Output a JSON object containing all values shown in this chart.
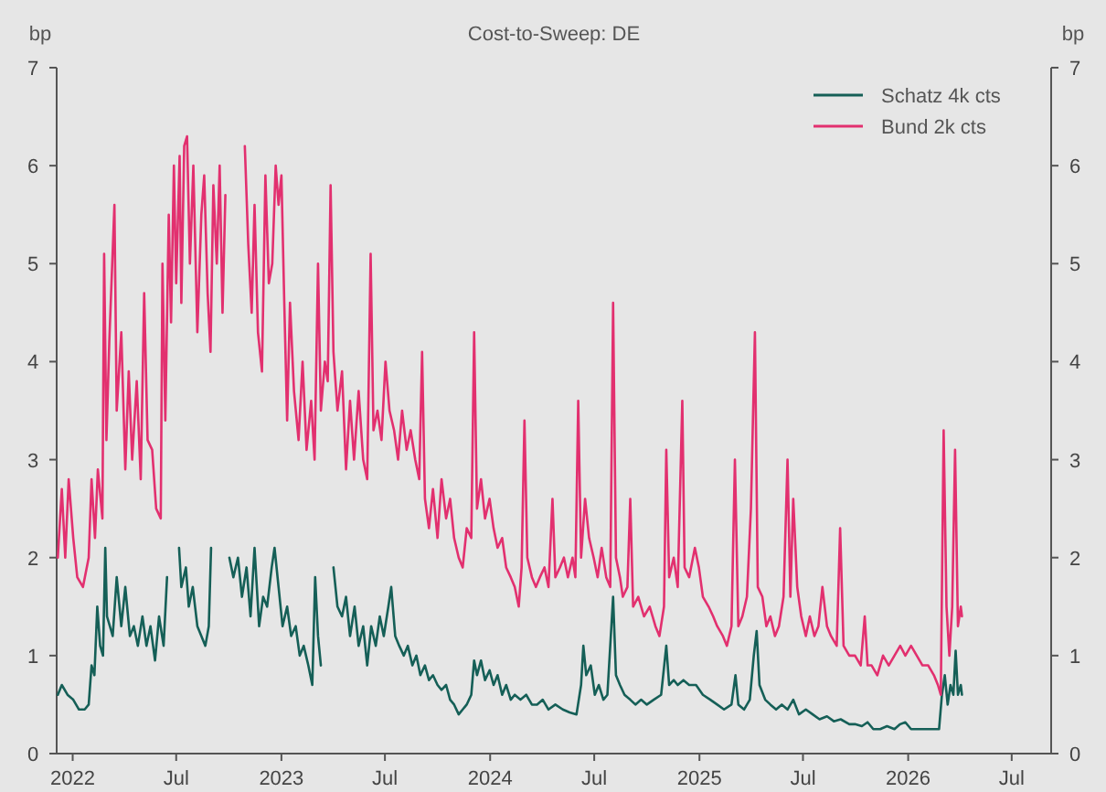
{
  "chart_data": {
    "type": "line",
    "title": "Cost-to-Sweep: DE",
    "ylabel": "bp",
    "y2label": "bp",
    "xlim": [
      "2021-12-04",
      "2026-09-08"
    ],
    "xticks": [
      {
        "value": "2022-01-01",
        "label": "2022"
      },
      {
        "value": "2022-07-01",
        "label": "Jul"
      },
      {
        "value": "2023-01-01",
        "label": "2023"
      },
      {
        "value": "2023-07-01",
        "label": "Jul"
      },
      {
        "value": "2024-01-01",
        "label": "2024"
      },
      {
        "value": "2024-07-01",
        "label": "Jul"
      },
      {
        "value": "2025-01-01",
        "label": "2025"
      },
      {
        "value": "2025-07-01",
        "label": "Jul"
      },
      {
        "value": "2026-01-01",
        "label": "2026"
      },
      {
        "value": "2026-07-01",
        "label": "Jul"
      }
    ],
    "ylim": [
      0,
      7
    ],
    "yticks": [
      0,
      1,
      2,
      3,
      4,
      5,
      6,
      7
    ],
    "y2lim": [
      0,
      7
    ],
    "y2ticks": [
      0,
      1,
      2,
      3,
      4,
      5,
      6,
      7
    ],
    "grid": false,
    "legend": "top right",
    "line_style": "solid",
    "marker": "none",
    "series": [
      {
        "name": "Schatz 4k cts",
        "color": "#155f57",
        "x": [
          "2021-12-06",
          "2021-12-13",
          "2021-12-23",
          "2022-01-02",
          "2022-01-12",
          "2022-01-22",
          "2022-01-29",
          "2022-02-03",
          "2022-02-08",
          "2022-02-13",
          "2022-02-18",
          "2022-02-23",
          "2022-02-27",
          "2022-03-02",
          "2022-03-12",
          "2022-03-19",
          "2022-03-27",
          "2022-04-03",
          "2022-04-11",
          "2022-04-18",
          "2022-04-25",
          "2022-05-03",
          "2022-05-10",
          "2022-05-17",
          "2022-05-25",
          "2022-06-01",
          "2022-06-09",
          "2022-06-15",
          "2022-06-25",
          "2022-07-06",
          "2022-07-10",
          "2022-07-18",
          "2022-07-23",
          "2022-07-30",
          "2022-08-07",
          "2022-08-14",
          "2022-08-21",
          "2022-08-27",
          "2022-08-31",
          "2022-09-15",
          "2022-10-02",
          "2022-10-09",
          "2022-10-17",
          "2022-10-24",
          "2022-11-01",
          "2022-11-08",
          "2022-11-15",
          "2022-11-23",
          "2022-11-30",
          "2022-12-07",
          "2022-12-15",
          "2022-12-20",
          "2022-12-27",
          "2023-01-03",
          "2023-01-11",
          "2023-01-18",
          "2023-01-26",
          "2023-02-02",
          "2023-02-09",
          "2023-02-17",
          "2023-02-24",
          "2023-03-01",
          "2023-03-06",
          "2023-03-11",
          "2023-03-20",
          "2023-04-02",
          "2023-04-09",
          "2023-04-17",
          "2023-04-24",
          "2023-05-01",
          "2023-05-09",
          "2023-05-16",
          "2023-05-24",
          "2023-05-31",
          "2023-06-07",
          "2023-06-15",
          "2023-06-22",
          "2023-06-29",
          "2023-07-07",
          "2023-07-12",
          "2023-07-19",
          "2023-07-26",
          "2023-08-03",
          "2023-08-10",
          "2023-08-18",
          "2023-08-25",
          "2023-09-01",
          "2023-09-09",
          "2023-09-16",
          "2023-09-23",
          "2023-10-01",
          "2023-10-08",
          "2023-10-16",
          "2023-10-23",
          "2023-10-30",
          "2023-11-07",
          "2023-11-14",
          "2023-11-21",
          "2023-11-29",
          "2023-12-04",
          "2023-12-09",
          "2023-12-16",
          "2023-12-23",
          "2023-12-31",
          "2024-01-07",
          "2024-01-14",
          "2024-01-22",
          "2024-01-29",
          "2024-02-06",
          "2024-02-13",
          "2024-02-23",
          "2024-03-04",
          "2024-03-14",
          "2024-03-23",
          "2024-04-02",
          "2024-04-12",
          "2024-04-24",
          "2024-05-07",
          "2024-05-19",
          "2024-05-31",
          "2024-06-08",
          "2024-06-12",
          "2024-06-17",
          "2024-06-25",
          "2024-07-02",
          "2024-07-09",
          "2024-07-17",
          "2024-07-24",
          "2024-08-03",
          "2024-08-08",
          "2024-08-15",
          "2024-08-23",
          "2024-09-02",
          "2024-09-11",
          "2024-09-21",
          "2024-10-01",
          "2024-10-13",
          "2024-10-26",
          "2024-11-04",
          "2024-11-09",
          "2024-11-17",
          "2024-11-24",
          "2024-12-04",
          "2024-12-14",
          "2024-12-26",
          "2025-01-07",
          "2025-01-20",
          "2025-02-01",
          "2025-02-13",
          "2025-02-26",
          "2025-03-05",
          "2025-03-10",
          "2025-03-20",
          "2025-03-30",
          "2025-04-06",
          "2025-04-11",
          "2025-04-16",
          "2025-04-26",
          "2025-05-05",
          "2025-05-15",
          "2025-05-25",
          "2025-06-04",
          "2025-06-14",
          "2025-06-24",
          "2025-07-06",
          "2025-07-18",
          "2025-07-30",
          "2025-08-12",
          "2025-08-24",
          "2025-09-05",
          "2025-09-20",
          "2025-09-30",
          "2025-10-12",
          "2025-10-22",
          "2025-11-01",
          "2025-11-13",
          "2025-11-25",
          "2025-12-08",
          "2025-12-18",
          "2025-12-27",
          "2026-01-06",
          "2026-01-18",
          "2026-01-31",
          "2026-02-12",
          "2026-02-24",
          "2026-03-01",
          "2026-03-06",
          "2026-03-11",
          "2026-03-16",
          "2026-03-21",
          "2026-03-25",
          "2026-03-29",
          "2026-04-03",
          "2026-04-05"
        ],
        "values": [
          0.6,
          0.7,
          0.6,
          0.55,
          0.45,
          0.45,
          0.5,
          0.9,
          0.8,
          1.5,
          1.1,
          1.0,
          2.1,
          1.4,
          1.2,
          1.8,
          1.3,
          1.7,
          1.2,
          1.3,
          1.1,
          1.4,
          1.1,
          1.3,
          0.95,
          1.4,
          1.1,
          1.8,
          null,
          2.1,
          1.7,
          1.9,
          1.5,
          1.7,
          1.3,
          1.2,
          1.1,
          1.3,
          2.1,
          null,
          2.0,
          1.8,
          2.0,
          1.6,
          1.9,
          1.4,
          2.1,
          1.3,
          1.6,
          1.5,
          1.9,
          2.1,
          1.7,
          1.3,
          1.5,
          1.2,
          1.3,
          1.0,
          1.1,
          0.9,
          0.7,
          1.8,
          1.2,
          0.9,
          null,
          1.9,
          1.5,
          1.4,
          1.6,
          1.2,
          1.5,
          1.1,
          1.3,
          0.9,
          1.3,
          1.1,
          1.4,
          1.2,
          1.5,
          1.7,
          1.2,
          1.1,
          1.0,
          1.1,
          0.9,
          1.0,
          0.8,
          0.9,
          0.75,
          0.8,
          0.7,
          0.65,
          0.7,
          0.55,
          0.5,
          0.4,
          0.45,
          0.5,
          0.6,
          0.95,
          0.8,
          0.95,
          0.75,
          0.85,
          0.7,
          0.8,
          0.6,
          0.7,
          0.55,
          0.6,
          0.55,
          0.6,
          0.5,
          0.5,
          0.55,
          0.45,
          0.5,
          0.45,
          0.42,
          0.4,
          0.7,
          1.1,
          0.8,
          0.9,
          0.6,
          0.7,
          0.55,
          0.6,
          1.6,
          0.8,
          0.7,
          0.6,
          0.55,
          0.5,
          0.55,
          0.5,
          0.55,
          0.6,
          1.1,
          0.7,
          0.75,
          0.7,
          0.75,
          0.7,
          0.7,
          0.6,
          0.55,
          0.5,
          0.45,
          0.5,
          0.8,
          0.5,
          0.45,
          0.55,
          1.0,
          1.25,
          0.7,
          0.55,
          0.5,
          0.45,
          0.5,
          0.45,
          0.55,
          0.4,
          0.45,
          0.4,
          0.35,
          0.38,
          0.33,
          0.35,
          0.3,
          0.3,
          0.28,
          0.32,
          0.25,
          0.25,
          0.28,
          0.25,
          0.3,
          0.32,
          0.25,
          0.25,
          0.25,
          0.25,
          0.25,
          0.6,
          0.8,
          0.5,
          0.7,
          0.6,
          1.05,
          0.6,
          0.7,
          0.6
        ]
      },
      {
        "name": "Bund 2k cts",
        "color": "#e2306f",
        "x": [
          "2021-12-06",
          "2021-12-13",
          "2021-12-19",
          "2021-12-25",
          "2022-01-02",
          "2022-01-09",
          "2022-01-19",
          "2022-01-29",
          "2022-02-03",
          "2022-02-09",
          "2022-02-14",
          "2022-02-22",
          "2022-02-25",
          "2022-03-01",
          "2022-03-06",
          "2022-03-15",
          "2022-03-19",
          "2022-03-27",
          "2022-04-03",
          "2022-04-09",
          "2022-04-15",
          "2022-04-23",
          "2022-04-30",
          "2022-05-06",
          "2022-05-12",
          "2022-05-20",
          "2022-05-27",
          "2022-06-04",
          "2022-06-07",
          "2022-06-12",
          "2022-06-18",
          "2022-06-22",
          "2022-06-27",
          "2022-07-01",
          "2022-07-07",
          "2022-07-10",
          "2022-07-15",
          "2022-07-20",
          "2022-07-25",
          "2022-07-31",
          "2022-08-07",
          "2022-08-14",
          "2022-08-19",
          "2022-08-25",
          "2022-08-30",
          "2022-09-04",
          "2022-09-10",
          "2022-09-15",
          "2022-09-20",
          "2022-09-25",
          "2022-10-12",
          "2022-10-29",
          "2022-11-04",
          "2022-11-10",
          "2022-11-15",
          "2022-11-21",
          "2022-11-28",
          "2022-12-04",
          "2022-12-10",
          "2022-12-16",
          "2022-12-22",
          "2022-12-27",
          "2023-01-01",
          "2023-01-06",
          "2023-01-11",
          "2023-01-16",
          "2023-01-23",
          "2023-01-31",
          "2023-02-07",
          "2023-02-14",
          "2023-02-22",
          "2023-02-28",
          "2023-03-06",
          "2023-03-11",
          "2023-03-18",
          "2023-03-23",
          "2023-03-28",
          "2023-04-02",
          "2023-04-09",
          "2023-04-17",
          "2023-04-24",
          "2023-05-01",
          "2023-05-08",
          "2023-05-16",
          "2023-05-24",
          "2023-05-31",
          "2023-06-06",
          "2023-06-11",
          "2023-06-18",
          "2023-06-25",
          "2023-07-02",
          "2023-07-09",
          "2023-07-17",
          "2023-07-24",
          "2023-07-31",
          "2023-08-08",
          "2023-08-15",
          "2023-08-23",
          "2023-08-30",
          "2023-09-04",
          "2023-09-09",
          "2023-09-16",
          "2023-09-23",
          "2023-10-01",
          "2023-10-08",
          "2023-10-16",
          "2023-10-23",
          "2023-10-30",
          "2023-11-07",
          "2023-11-14",
          "2023-11-21",
          "2023-11-29",
          "2023-12-04",
          "2023-12-09",
          "2023-12-16",
          "2023-12-23",
          "2023-12-31",
          "2024-01-07",
          "2024-01-14",
          "2024-01-22",
          "2024-01-29",
          "2024-02-06",
          "2024-02-13",
          "2024-02-20",
          "2024-02-25",
          "2024-03-01",
          "2024-03-06",
          "2024-03-14",
          "2024-03-21",
          "2024-03-28",
          "2024-04-05",
          "2024-04-12",
          "2024-04-19",
          "2024-04-24",
          "2024-05-02",
          "2024-05-09",
          "2024-05-16",
          "2024-05-24",
          "2024-05-29",
          "2024-06-03",
          "2024-06-08",
          "2024-06-15",
          "2024-06-22",
          "2024-06-30",
          "2024-07-07",
          "2024-07-14",
          "2024-07-22",
          "2024-07-29",
          "2024-08-03",
          "2024-08-08",
          "2024-08-15",
          "2024-08-20",
          "2024-08-28",
          "2024-09-02",
          "2024-09-07",
          "2024-09-16",
          "2024-09-26",
          "2024-10-06",
          "2024-10-16",
          "2024-10-23",
          "2024-10-31",
          "2024-11-04",
          "2024-11-09",
          "2024-11-17",
          "2024-11-24",
          "2024-12-02",
          "2024-12-06",
          "2024-12-14",
          "2024-12-24",
          "2024-12-31",
          "2025-01-07",
          "2025-01-17",
          "2025-01-25",
          "2025-02-01",
          "2025-02-11",
          "2025-02-18",
          "2025-02-26",
          "2025-03-04",
          "2025-03-10",
          "2025-03-17",
          "2025-03-25",
          "2025-04-01",
          "2025-04-08",
          "2025-04-13",
          "2025-04-21",
          "2025-04-28",
          "2025-05-05",
          "2025-05-13",
          "2025-05-20",
          "2025-05-28",
          "2025-06-04",
          "2025-06-09",
          "2025-06-14",
          "2025-06-21",
          "2025-06-28",
          "2025-07-06",
          "2025-07-13",
          "2025-07-21",
          "2025-07-28",
          "2025-08-04",
          "2025-08-12",
          "2025-08-19",
          "2025-08-29",
          "2025-09-04",
          "2025-09-10",
          "2025-09-20",
          "2025-09-30",
          "2025-10-10",
          "2025-10-17",
          "2025-10-22",
          "2025-10-29",
          "2025-11-08",
          "2025-11-18",
          "2025-11-28",
          "2025-12-08",
          "2025-12-18",
          "2025-12-27",
          "2026-01-06",
          "2026-01-16",
          "2026-01-26",
          "2026-02-05",
          "2026-02-15",
          "2026-02-22",
          "2026-02-27",
          "2026-03-04",
          "2026-03-09",
          "2026-03-14",
          "2026-03-19",
          "2026-03-24",
          "2026-03-29",
          "2026-04-03",
          "2026-04-05"
        ],
        "values": [
          2.0,
          2.7,
          2.0,
          2.8,
          2.2,
          1.8,
          1.7,
          2.0,
          2.8,
          2.2,
          2.9,
          2.4,
          5.1,
          3.2,
          4.2,
          5.6,
          3.5,
          4.3,
          2.9,
          3.9,
          3.0,
          3.8,
          2.8,
          4.7,
          3.2,
          3.1,
          2.5,
          2.4,
          5.0,
          3.4,
          5.5,
          4.4,
          6.0,
          4.8,
          6.1,
          4.6,
          6.2,
          6.3,
          5.0,
          6.0,
          4.3,
          5.5,
          5.9,
          4.7,
          4.1,
          5.8,
          5.0,
          6.0,
          4.5,
          5.7,
          null,
          6.2,
          5.2,
          4.5,
          5.6,
          4.3,
          3.9,
          5.9,
          4.8,
          5.0,
          6.0,
          5.6,
          5.9,
          4.6,
          3.4,
          4.6,
          3.7,
          3.2,
          4.0,
          3.1,
          3.6,
          3.0,
          5.0,
          3.5,
          4.0,
          3.8,
          5.8,
          4.1,
          3.5,
          3.9,
          2.9,
          3.6,
          3.0,
          3.7,
          3.0,
          2.8,
          5.1,
          3.3,
          3.5,
          3.2,
          4.0,
          3.5,
          3.3,
          3.0,
          3.5,
          3.1,
          3.3,
          3.0,
          2.8,
          4.1,
          2.6,
          2.3,
          2.7,
          2.2,
          2.8,
          2.4,
          2.6,
          2.2,
          2.0,
          1.9,
          2.3,
          2.2,
          4.3,
          2.5,
          2.8,
          2.4,
          2.6,
          2.3,
          2.1,
          2.2,
          1.9,
          1.8,
          1.7,
          1.5,
          1.9,
          3.4,
          2.0,
          1.8,
          1.7,
          1.8,
          1.9,
          1.7,
          2.6,
          1.8,
          1.9,
          2.0,
          1.8,
          2.0,
          1.8,
          3.6,
          2.0,
          2.6,
          2.2,
          2.0,
          1.8,
          2.1,
          1.8,
          1.7,
          4.6,
          2.0,
          1.8,
          1.6,
          1.7,
          2.6,
          1.5,
          1.6,
          1.4,
          1.5,
          1.3,
          1.2,
          1.5,
          3.1,
          1.8,
          2.0,
          1.7,
          3.6,
          1.9,
          1.8,
          2.1,
          1.9,
          1.6,
          1.5,
          1.4,
          1.3,
          1.2,
          1.1,
          1.3,
          3.0,
          1.3,
          1.4,
          1.6,
          2.5,
          4.3,
          1.7,
          1.6,
          1.3,
          1.4,
          1.2,
          1.3,
          1.6,
          3.0,
          1.6,
          2.6,
          1.7,
          1.4,
          1.2,
          1.4,
          1.2,
          1.3,
          1.7,
          1.3,
          1.2,
          1.1,
          2.3,
          1.1,
          1.0,
          1.0,
          0.9,
          1.4,
          0.9,
          0.9,
          0.8,
          1.0,
          0.9,
          1.0,
          1.1,
          1.0,
          1.1,
          1.0,
          0.9,
          0.9,
          0.8,
          0.7,
          0.6,
          3.3,
          1.5,
          1.0,
          1.5,
          3.1,
          1.3,
          1.5,
          1.4
        ]
      }
    ]
  }
}
